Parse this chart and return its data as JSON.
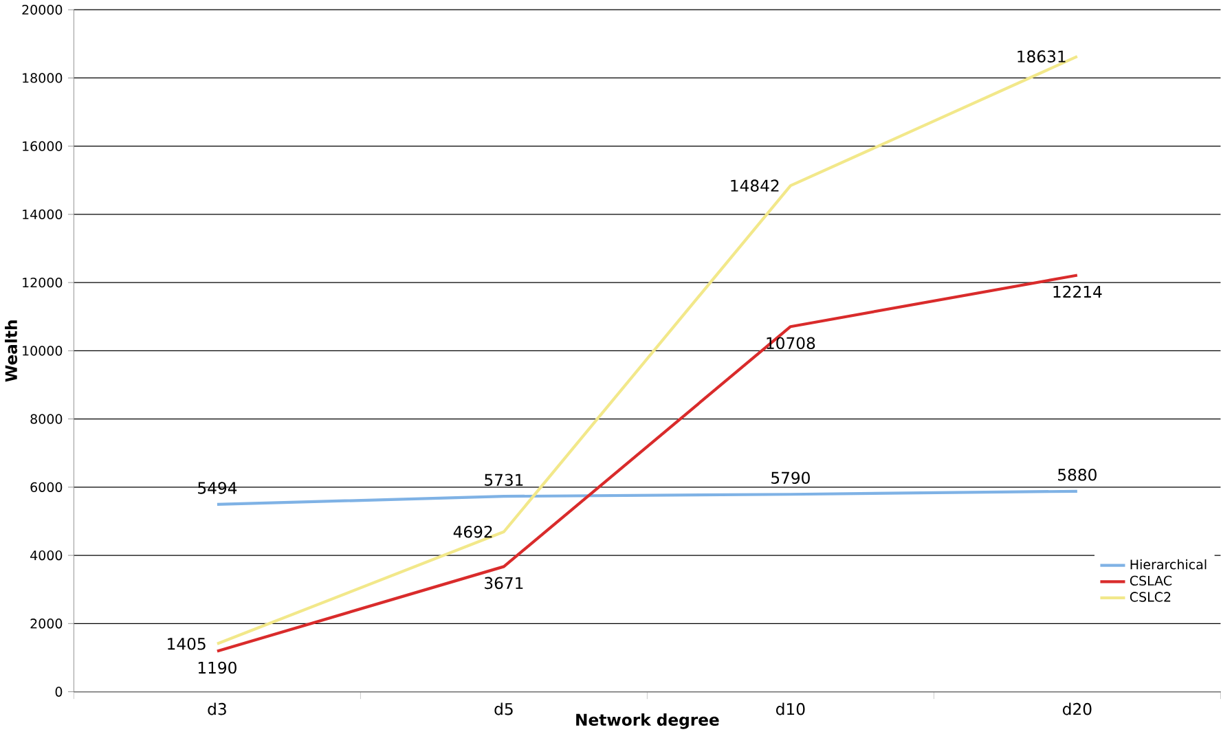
{
  "chart_data": {
    "type": "line",
    "xlabel": "Network degree",
    "ylabel": "Wealth",
    "categories": [
      "d3",
      "d5",
      "d10",
      "d20"
    ],
    "series": [
      {
        "name": "Hierarchical",
        "color": "#7fb2e5",
        "values": [
          5494,
          5731,
          5790,
          5880
        ]
      },
      {
        "name": "CSLAC",
        "color": "#d92b2b",
        "values": [
          1190,
          3671,
          10708,
          12214
        ]
      },
      {
        "name": "CSLC2",
        "color": "#f2e88a",
        "values": [
          1405,
          4692,
          14842,
          18631
        ]
      }
    ],
    "ylim": [
      0,
      20000
    ],
    "yticks": [
      0,
      2000,
      4000,
      6000,
      8000,
      10000,
      12000,
      14000,
      16000,
      18000,
      20000
    ],
    "grid": "y",
    "legend": "bottom right",
    "data_labels": true,
    "marker": "none",
    "line_style": "solid"
  }
}
